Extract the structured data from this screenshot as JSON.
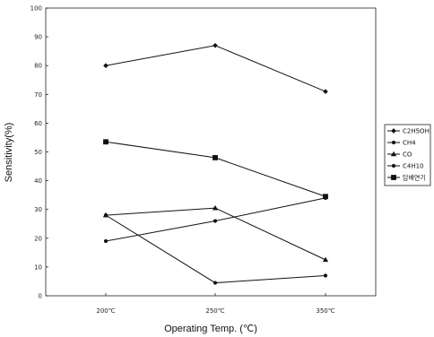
{
  "chart_data": {
    "type": "line",
    "title": "",
    "xlabel": "Operating Temp. (℃)",
    "ylabel": "Sensitivity(%)",
    "categories": [
      "200℃",
      "250℃",
      "350℃"
    ],
    "ylim": [
      0,
      100
    ],
    "yticks": [
      0,
      10,
      20,
      30,
      40,
      50,
      60,
      70,
      80,
      90,
      100
    ],
    "grid": false,
    "legend_position": "right",
    "series": [
      {
        "name": "C2H5OH",
        "values": [
          80,
          87,
          71
        ],
        "marker": "diamond"
      },
      {
        "name": "CH4",
        "values": [
          19,
          26,
          34
        ],
        "marker": "circle"
      },
      {
        "name": "CO",
        "values": [
          28,
          30.5,
          12.5
        ],
        "marker": "triangle"
      },
      {
        "name": "C4H10",
        "values": [
          28,
          4.5,
          7
        ],
        "marker": "circle"
      },
      {
        "name": "담배연기",
        "values": [
          53.5,
          48,
          34.5
        ],
        "marker": "square"
      }
    ],
    "line_color": "#111111"
  }
}
